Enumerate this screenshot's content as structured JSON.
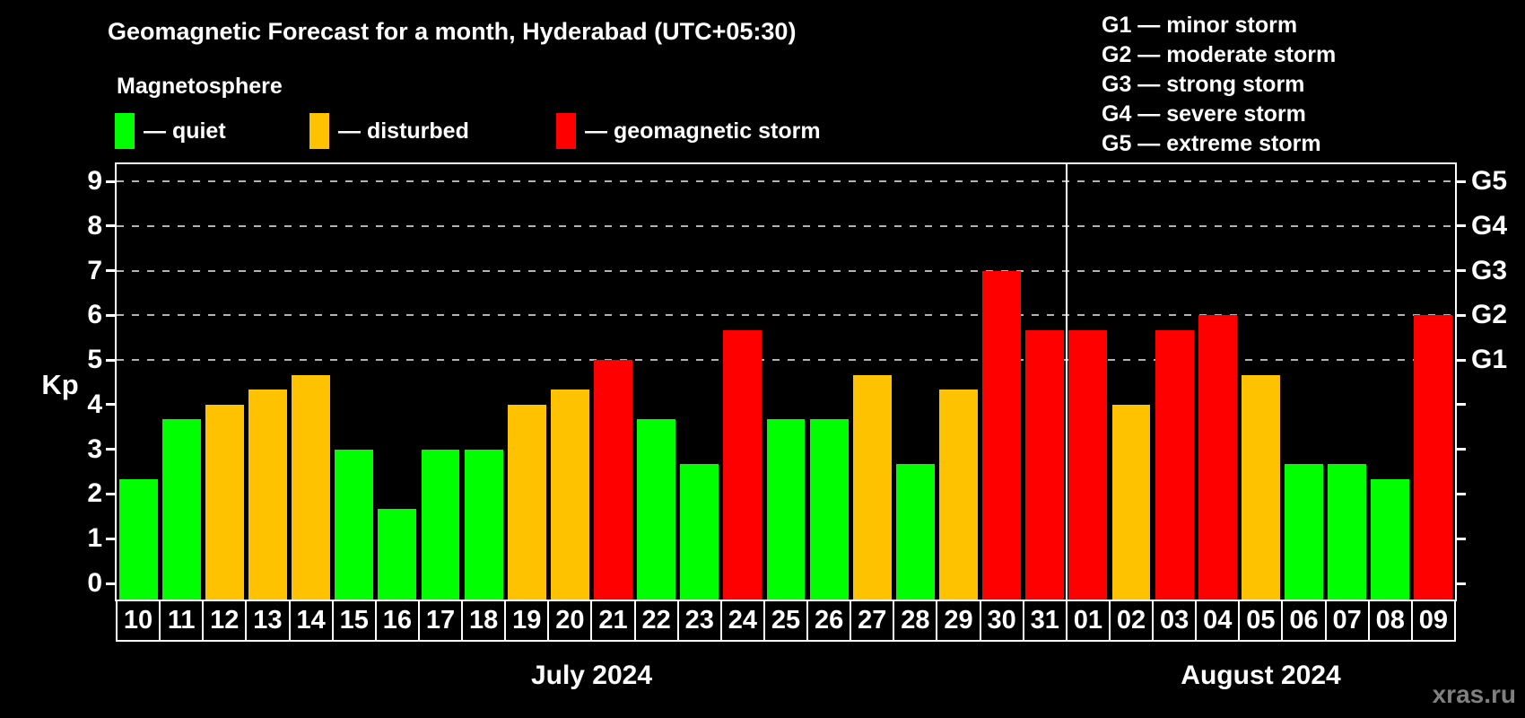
{
  "header": {
    "title": "Geomagnetic Forecast for a month, Hyderabad (UTC+05:30)",
    "subtitle": "Magnetosphere"
  },
  "legend": {
    "items": [
      {
        "label": "— quiet",
        "status": "quiet",
        "color": "#00ff00"
      },
      {
        "label": "— disturbed",
        "status": "disturbed",
        "color": "#ffc200"
      },
      {
        "label": "— geomagnetic storm",
        "status": "storm",
        "color": "#ff0000"
      }
    ]
  },
  "g_legend": {
    "lines": [
      "G1 — minor storm",
      "G2 — moderate storm",
      "G3 — strong storm",
      "G4 — severe storm",
      "G5 — extreme storm"
    ]
  },
  "axes": {
    "y_label": "Kp",
    "y_ticks": [
      0,
      1,
      2,
      3,
      4,
      5,
      6,
      7,
      8,
      9
    ],
    "right_labels": [
      {
        "kp": 5,
        "label": "G1"
      },
      {
        "kp": 6,
        "label": "G2"
      },
      {
        "kp": 7,
        "label": "G3"
      },
      {
        "kp": 8,
        "label": "G4"
      },
      {
        "kp": 9,
        "label": "G5"
      }
    ],
    "month_left": "July 2024",
    "month_right": "August 2024"
  },
  "footer": {
    "watermark": "xras.ru"
  },
  "status_colors": {
    "quiet": "#00ff00",
    "disturbed": "#ffc200",
    "storm": "#ff0000"
  },
  "chart_data": {
    "type": "bar",
    "title": "Geomagnetic Forecast for a month, Hyderabad (UTC+05:30)",
    "xlabel": "",
    "ylabel": "Kp",
    "ylim": [
      0,
      9
    ],
    "grid_levels": [
      5,
      6,
      7,
      8,
      9
    ],
    "legend_position": "top",
    "months": [
      {
        "name": "July 2024",
        "days": 22
      },
      {
        "name": "August 2024",
        "days": 9
      }
    ],
    "categories": [
      "10",
      "11",
      "12",
      "13",
      "14",
      "15",
      "16",
      "17",
      "18",
      "19",
      "20",
      "21",
      "22",
      "23",
      "24",
      "25",
      "26",
      "27",
      "28",
      "29",
      "30",
      "31",
      "01",
      "02",
      "03",
      "04",
      "05",
      "06",
      "07",
      "08",
      "09"
    ],
    "values": [
      2.33,
      3.67,
      4,
      4.33,
      4.67,
      3,
      1.67,
      3,
      3,
      4,
      4.33,
      5,
      3.67,
      2.67,
      5.67,
      3.67,
      3.67,
      4.67,
      2.67,
      4.33,
      7,
      5.67,
      5.67,
      4,
      5.67,
      6,
      4.67,
      2.67,
      2.67,
      2.33,
      6
    ],
    "statuses": [
      "quiet",
      "quiet",
      "disturbed",
      "disturbed",
      "disturbed",
      "quiet",
      "quiet",
      "quiet",
      "quiet",
      "disturbed",
      "disturbed",
      "storm",
      "quiet",
      "quiet",
      "storm",
      "quiet",
      "quiet",
      "disturbed",
      "quiet",
      "disturbed",
      "storm",
      "storm",
      "storm",
      "disturbed",
      "storm",
      "storm",
      "disturbed",
      "quiet",
      "quiet",
      "quiet",
      "storm"
    ]
  }
}
